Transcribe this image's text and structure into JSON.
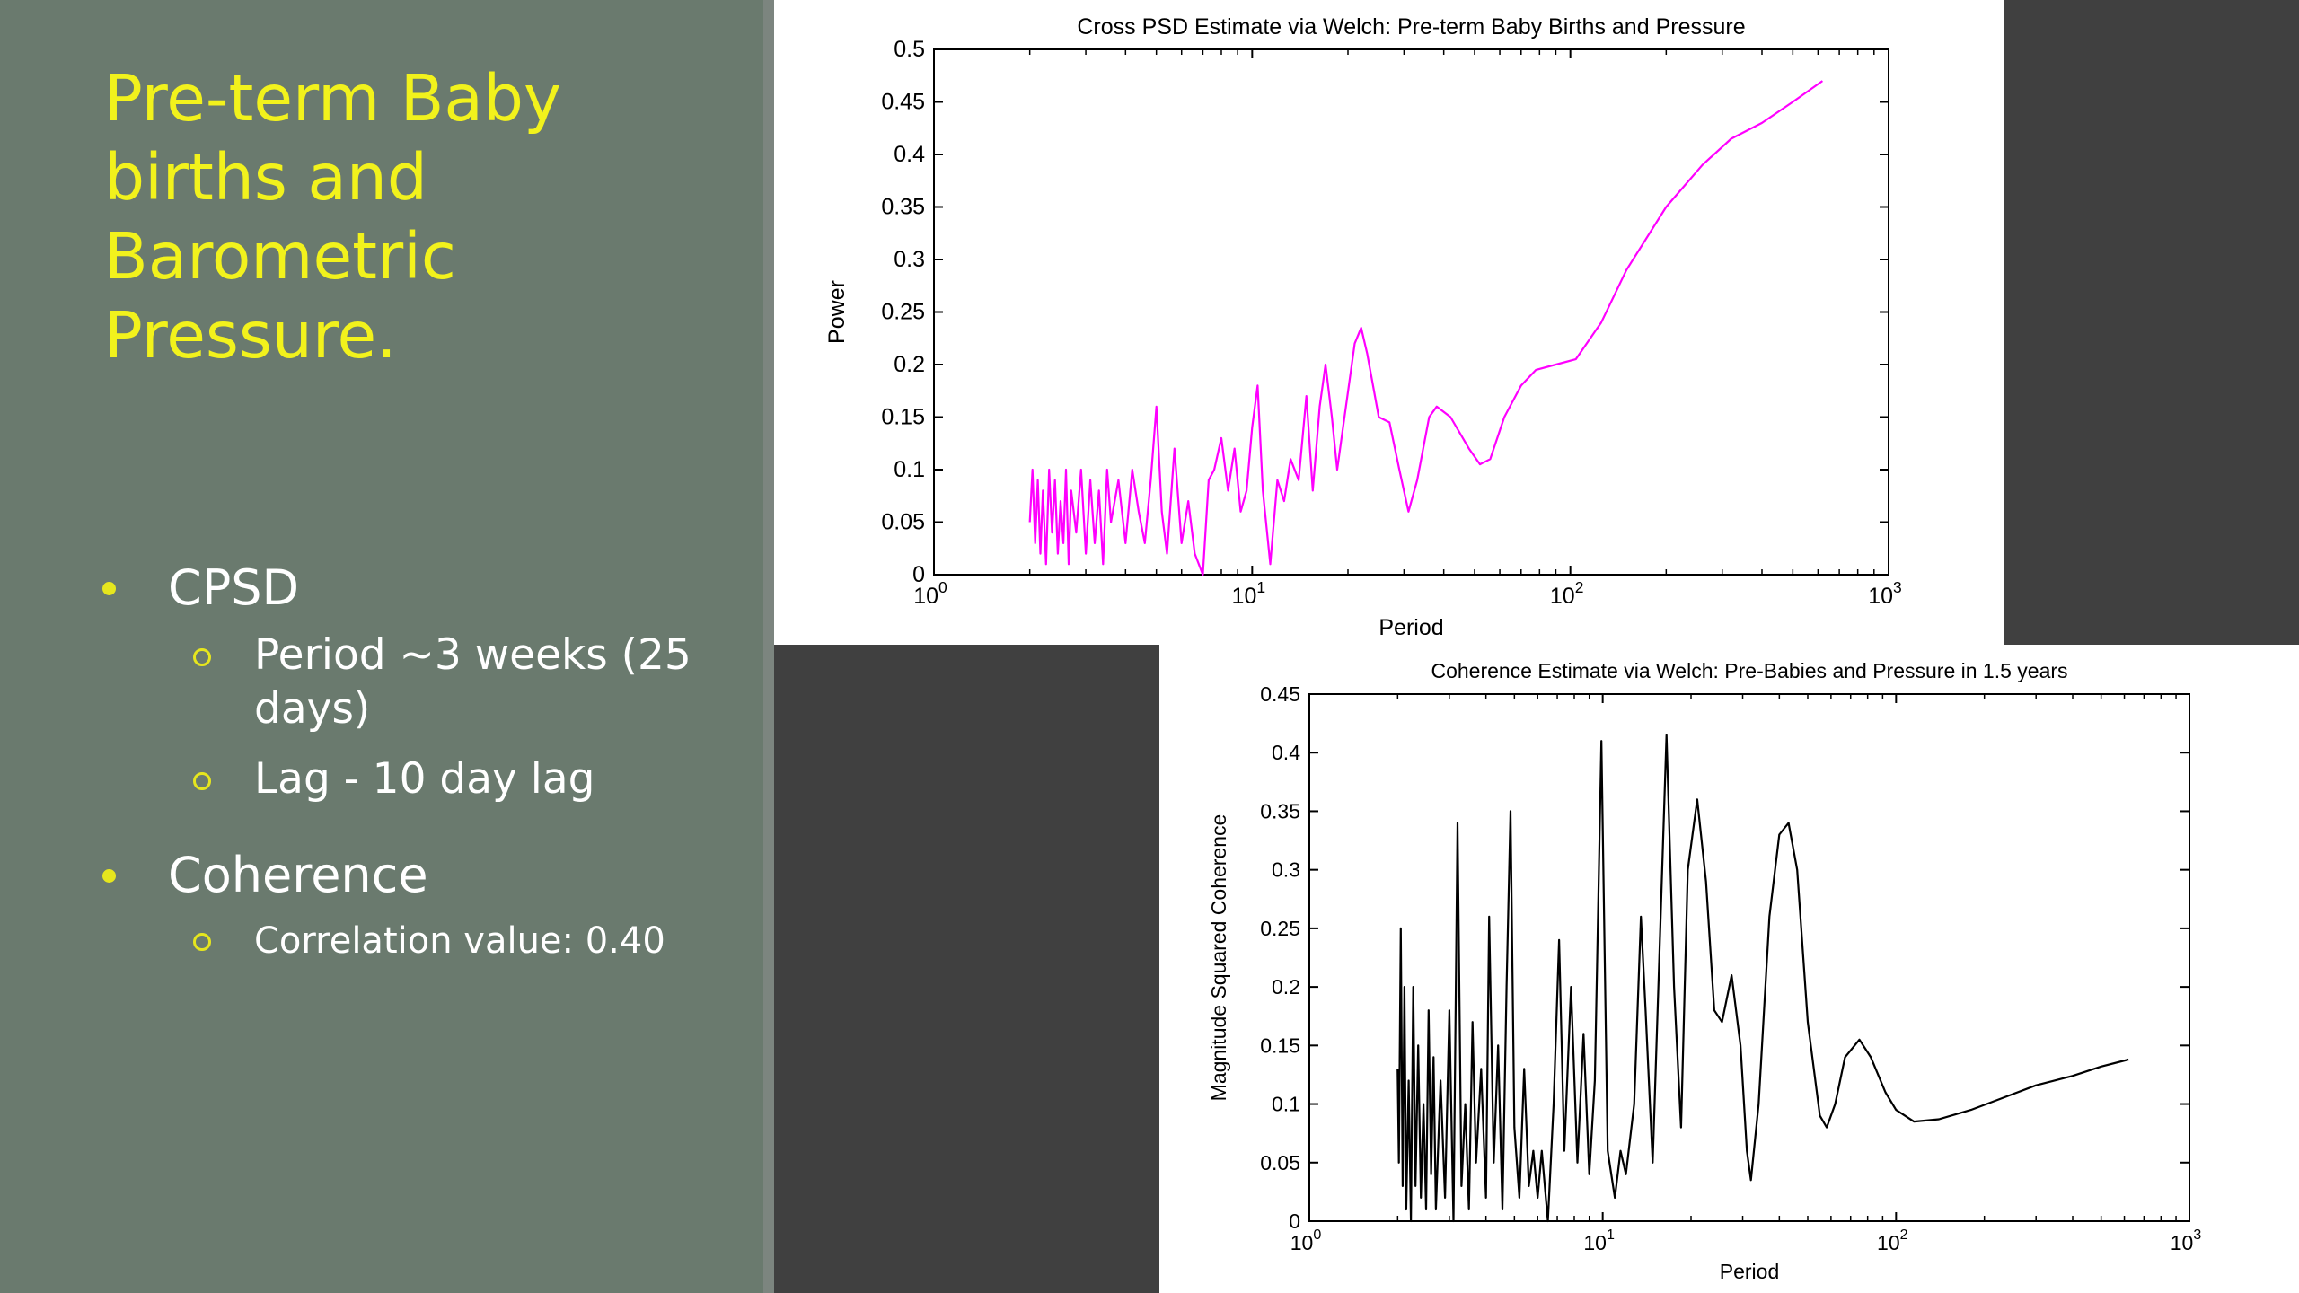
{
  "slide": {
    "title": "Pre-term Baby births and Barometric Pressure.",
    "bullets": [
      {
        "label": "CPSD",
        "sub": [
          "Period ~3 weeks (25 days)",
          "Lag - 10 day lag"
        ]
      },
      {
        "label": "Coherence",
        "sub": [
          "Correlation value: 0.40"
        ]
      }
    ]
  },
  "colors": {
    "panel": "#6a7a6e",
    "title": "#f2f21c",
    "bullet_marker": "#e6e61e",
    "psd_line": "#ff00ff",
    "coherence_line": "#000000"
  },
  "chart_data": [
    {
      "type": "line",
      "title": "Cross PSD Estimate via Welch: Pre-term Baby Births and Pressure",
      "xlabel": "Period",
      "ylabel": "Power",
      "xscale": "log",
      "xlim": [
        1,
        1000
      ],
      "ylim": [
        0,
        0.5
      ],
      "xticks": [
        {
          "base": "10",
          "exp": "0"
        },
        {
          "base": "10",
          "exp": "1"
        },
        {
          "base": "10",
          "exp": "2"
        },
        {
          "base": "10",
          "exp": "3"
        }
      ],
      "yticks": [
        "0",
        "0.05",
        "0.1",
        "0.15",
        "0.2",
        "0.25",
        "0.3",
        "0.35",
        "0.4",
        "0.45",
        "0.5"
      ],
      "series": [
        {
          "color": "#ff00ff",
          "points": [
            [
              2.0,
              0.05
            ],
            [
              2.04,
              0.1
            ],
            [
              2.08,
              0.03
            ],
            [
              2.12,
              0.09
            ],
            [
              2.16,
              0.02
            ],
            [
              2.2,
              0.08
            ],
            [
              2.25,
              0.01
            ],
            [
              2.3,
              0.1
            ],
            [
              2.35,
              0.04
            ],
            [
              2.4,
              0.09
            ],
            [
              2.45,
              0.02
            ],
            [
              2.5,
              0.07
            ],
            [
              2.55,
              0.03
            ],
            [
              2.6,
              0.1
            ],
            [
              2.65,
              0.01
            ],
            [
              2.7,
              0.08
            ],
            [
              2.8,
              0.04
            ],
            [
              2.9,
              0.1
            ],
            [
              3.0,
              0.02
            ],
            [
              3.1,
              0.09
            ],
            [
              3.2,
              0.03
            ],
            [
              3.3,
              0.08
            ],
            [
              3.4,
              0.01
            ],
            [
              3.5,
              0.1
            ],
            [
              3.6,
              0.05
            ],
            [
              3.8,
              0.09
            ],
            [
              4.0,
              0.03
            ],
            [
              4.2,
              0.1
            ],
            [
              4.4,
              0.06
            ],
            [
              4.6,
              0.03
            ],
            [
              4.8,
              0.09
            ],
            [
              5.0,
              0.16
            ],
            [
              5.2,
              0.06
            ],
            [
              5.4,
              0.02
            ],
            [
              5.7,
              0.12
            ],
            [
              6.0,
              0.03
            ],
            [
              6.3,
              0.07
            ],
            [
              6.6,
              0.02
            ],
            [
              7.0,
              0.0
            ],
            [
              7.3,
              0.09
            ],
            [
              7.6,
              0.1
            ],
            [
              8.0,
              0.13
            ],
            [
              8.4,
              0.08
            ],
            [
              8.8,
              0.12
            ],
            [
              9.2,
              0.06
            ],
            [
              9.6,
              0.08
            ],
            [
              10.0,
              0.14
            ],
            [
              10.4,
              0.18
            ],
            [
              10.8,
              0.08
            ],
            [
              11.4,
              0.01
            ],
            [
              12.0,
              0.09
            ],
            [
              12.6,
              0.07
            ],
            [
              13.2,
              0.11
            ],
            [
              14.0,
              0.09
            ],
            [
              14.8,
              0.17
            ],
            [
              15.5,
              0.08
            ],
            [
              16.3,
              0.16
            ],
            [
              17.0,
              0.2
            ],
            [
              17.8,
              0.15
            ],
            [
              18.5,
              0.1
            ],
            [
              19.5,
              0.15
            ],
            [
              21.0,
              0.22
            ],
            [
              22.0,
              0.235
            ],
            [
              23.0,
              0.21
            ],
            [
              25.0,
              0.15
            ],
            [
              27.0,
              0.145
            ],
            [
              29.0,
              0.1
            ],
            [
              31.0,
              0.06
            ],
            [
              33.0,
              0.09
            ],
            [
              36.0,
              0.15
            ],
            [
              38.0,
              0.16
            ],
            [
              42.0,
              0.15
            ],
            [
              48.0,
              0.12
            ],
            [
              52.0,
              0.105
            ],
            [
              56.0,
              0.11
            ],
            [
              62.0,
              0.15
            ],
            [
              70.0,
              0.18
            ],
            [
              78.0,
              0.195
            ],
            [
              90.0,
              0.2
            ],
            [
              104.0,
              0.205
            ],
            [
              125.0,
              0.24
            ],
            [
              150.0,
              0.29
            ],
            [
              200.0,
              0.35
            ],
            [
              260.0,
              0.39
            ],
            [
              320.0,
              0.415
            ],
            [
              400.0,
              0.43
            ],
            [
              500.0,
              0.45
            ],
            [
              620.0,
              0.47
            ]
          ]
        }
      ]
    },
    {
      "type": "line",
      "title": "Coherence Estimate via Welch: Pre-Babies and Pressure in 1.5 years",
      "xlabel": "Period",
      "ylabel": "Magnitude Squared Coherence",
      "xscale": "log",
      "xlim": [
        1,
        1000
      ],
      "ylim": [
        0,
        0.45
      ],
      "xticks": [
        {
          "base": "10",
          "exp": "0"
        },
        {
          "base": "10",
          "exp": "1"
        },
        {
          "base": "10",
          "exp": "2"
        },
        {
          "base": "10",
          "exp": "3"
        }
      ],
      "yticks": [
        "0",
        "0.05",
        "0.1",
        "0.15",
        "0.2",
        "0.25",
        "0.3",
        "0.35",
        "0.4",
        "0.45"
      ],
      "series": [
        {
          "color": "#000000",
          "points": [
            [
              2.0,
              0.13
            ],
            [
              2.02,
              0.05
            ],
            [
              2.05,
              0.25
            ],
            [
              2.08,
              0.03
            ],
            [
              2.11,
              0.2
            ],
            [
              2.14,
              0.01
            ],
            [
              2.18,
              0.12
            ],
            [
              2.22,
              0.0
            ],
            [
              2.26,
              0.2
            ],
            [
              2.3,
              0.03
            ],
            [
              2.35,
              0.15
            ],
            [
              2.4,
              0.02
            ],
            [
              2.45,
              0.1
            ],
            [
              2.5,
              0.01
            ],
            [
              2.55,
              0.18
            ],
            [
              2.6,
              0.04
            ],
            [
              2.65,
              0.14
            ],
            [
              2.7,
              0.01
            ],
            [
              2.8,
              0.12
            ],
            [
              2.9,
              0.02
            ],
            [
              3.0,
              0.18
            ],
            [
              3.1,
              0.0
            ],
            [
              3.2,
              0.34
            ],
            [
              3.3,
              0.03
            ],
            [
              3.4,
              0.1
            ],
            [
              3.5,
              0.01
            ],
            [
              3.6,
              0.17
            ],
            [
              3.7,
              0.05
            ],
            [
              3.85,
              0.13
            ],
            [
              4.0,
              0.02
            ],
            [
              4.1,
              0.26
            ],
            [
              4.25,
              0.05
            ],
            [
              4.4,
              0.15
            ],
            [
              4.55,
              0.01
            ],
            [
              4.7,
              0.2
            ],
            [
              4.85,
              0.35
            ],
            [
              5.0,
              0.08
            ],
            [
              5.2,
              0.02
            ],
            [
              5.4,
              0.13
            ],
            [
              5.6,
              0.03
            ],
            [
              5.8,
              0.06
            ],
            [
              6.0,
              0.02
            ],
            [
              6.2,
              0.06
            ],
            [
              6.5,
              0.0
            ],
            [
              6.8,
              0.1
            ],
            [
              7.1,
              0.24
            ],
            [
              7.4,
              0.06
            ],
            [
              7.8,
              0.2
            ],
            [
              8.2,
              0.05
            ],
            [
              8.6,
              0.16
            ],
            [
              9.0,
              0.04
            ],
            [
              9.4,
              0.12
            ],
            [
              9.9,
              0.41
            ],
            [
              10.4,
              0.06
            ],
            [
              11.0,
              0.02
            ],
            [
              11.5,
              0.06
            ],
            [
              12.0,
              0.04
            ],
            [
              12.8,
              0.1
            ],
            [
              13.5,
              0.26
            ],
            [
              14.0,
              0.18
            ],
            [
              14.8,
              0.05
            ],
            [
              15.8,
              0.27
            ],
            [
              16.5,
              0.415
            ],
            [
              17.5,
              0.2
            ],
            [
              18.5,
              0.08
            ],
            [
              19.5,
              0.3
            ],
            [
              21.0,
              0.36
            ],
            [
              22.5,
              0.29
            ],
            [
              24.0,
              0.18
            ],
            [
              25.5,
              0.17
            ],
            [
              27.5,
              0.21
            ],
            [
              29.5,
              0.15
            ],
            [
              31.0,
              0.06
            ],
            [
              32.0,
              0.035
            ],
            [
              34.0,
              0.1
            ],
            [
              37.0,
              0.26
            ],
            [
              40.0,
              0.33
            ],
            [
              43.0,
              0.34
            ],
            [
              46.0,
              0.3
            ],
            [
              50.0,
              0.17
            ],
            [
              55.0,
              0.09
            ],
            [
              58.0,
              0.08
            ],
            [
              62.0,
              0.1
            ],
            [
              67.0,
              0.14
            ],
            [
              75.0,
              0.155
            ],
            [
              82.0,
              0.14
            ],
            [
              92.0,
              0.11
            ],
            [
              100.0,
              0.095
            ],
            [
              115.0,
              0.085
            ],
            [
              140.0,
              0.087
            ],
            [
              180.0,
              0.095
            ],
            [
              230.0,
              0.105
            ],
            [
              300.0,
              0.116
            ],
            [
              400.0,
              0.124
            ],
            [
              500.0,
              0.132
            ],
            [
              620.0,
              0.138
            ]
          ]
        }
      ]
    }
  ]
}
